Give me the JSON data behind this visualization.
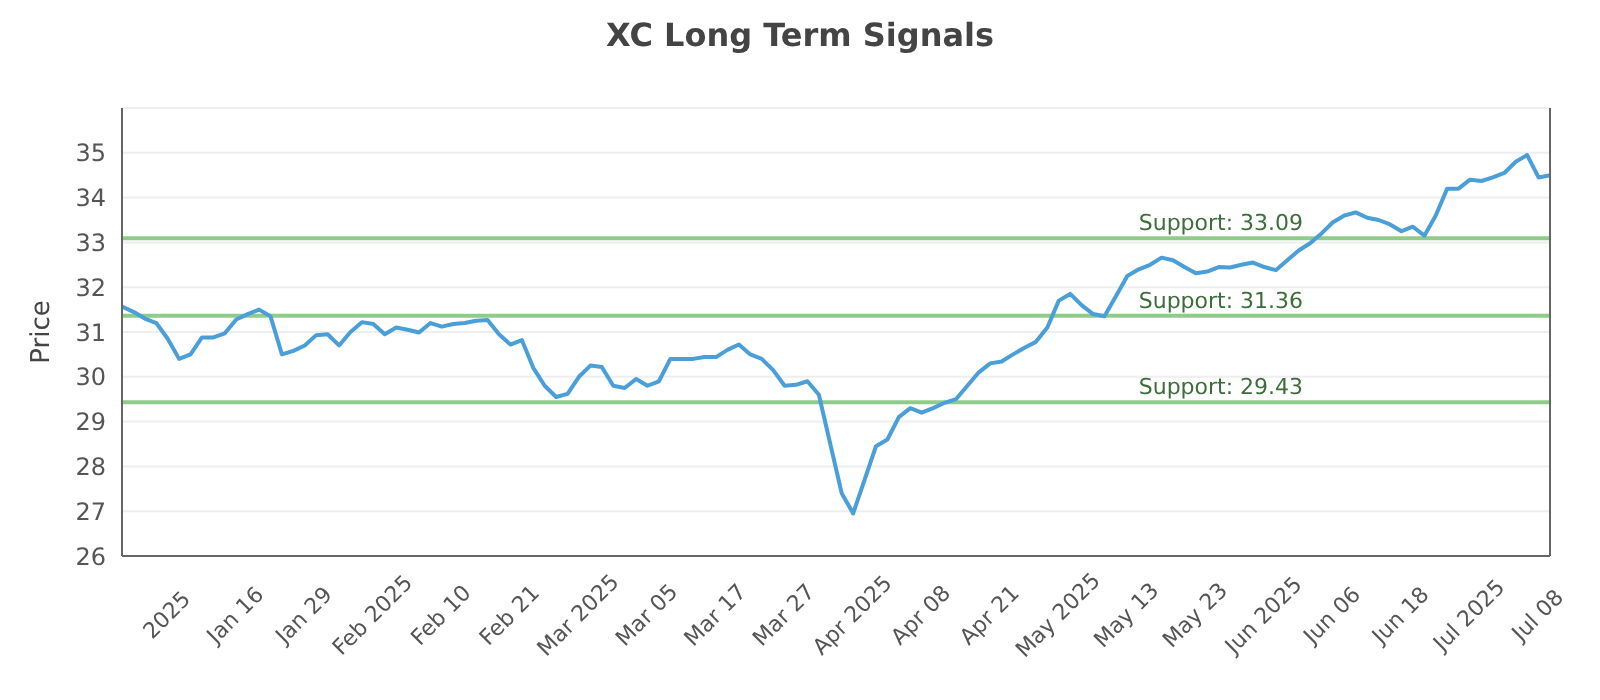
{
  "chart_data": {
    "type": "line",
    "title": "XC Long Term Signals",
    "ylabel": "Price",
    "categories": [
      null,
      null,
      null,
      null,
      "2025",
      null,
      null,
      null,
      null,
      null,
      "Jan 16",
      null,
      null,
      null,
      null,
      null,
      "Jan 29",
      null,
      null,
      null,
      null,
      null,
      "Feb 2025",
      null,
      null,
      null,
      null,
      null,
      "Feb 10",
      null,
      null,
      null,
      null,
      null,
      "Feb 21",
      null,
      null,
      null,
      null,
      null,
      "Mar 2025",
      null,
      null,
      null,
      null,
      null,
      "Mar 05",
      null,
      null,
      null,
      null,
      null,
      "Mar 17",
      null,
      null,
      null,
      null,
      null,
      "Mar 27",
      null,
      null,
      null,
      null,
      null,
      "Apr 2025",
      null,
      null,
      null,
      null,
      null,
      "Apr 08",
      null,
      null,
      null,
      null,
      null,
      "Apr 21",
      null,
      null,
      null,
      null,
      null,
      "May 2025",
      null,
      null,
      null,
      null,
      null,
      "May 13",
      null,
      null,
      null,
      null,
      null,
      "May 23",
      null,
      null,
      null,
      null,
      null,
      "Jun 2025",
      null,
      null,
      null,
      null,
      null,
      "Jun 06",
      null,
      null,
      null,
      null,
      null,
      "Jun 18",
      null,
      null,
      null,
      null,
      null,
      "Jul 2025",
      null,
      null,
      null,
      null,
      null,
      "Jul 08",
      null
    ],
    "series": [
      {
        "color": "#4a9fd8",
        "values": [
          31.57,
          31.45,
          31.3,
          31.2,
          30.85,
          30.4,
          30.5,
          30.88,
          30.88,
          30.97,
          31.28,
          31.4,
          31.5,
          31.35,
          30.5,
          30.58,
          30.7,
          30.93,
          30.95,
          30.7,
          31.0,
          31.22,
          31.18,
          30.95,
          31.1,
          31.05,
          30.99,
          31.2,
          31.12,
          31.18,
          31.2,
          31.25,
          31.27,
          30.95,
          30.72,
          30.82,
          30.2,
          29.8,
          29.55,
          29.62,
          30.0,
          30.25,
          30.22,
          29.8,
          29.75,
          29.95,
          29.8,
          29.9,
          30.4,
          30.4,
          30.4,
          30.44,
          30.44,
          30.6,
          30.72,
          30.5,
          30.4,
          30.15,
          29.8,
          29.82,
          29.9,
          29.6,
          28.5,
          27.4,
          26.95,
          27.7,
          28.45,
          28.6,
          29.1,
          29.3,
          29.2,
          29.3,
          29.42,
          29.5,
          29.8,
          30.1,
          30.3,
          30.34,
          30.5,
          30.65,
          30.78,
          31.1,
          31.7,
          31.85,
          31.6,
          31.4,
          31.35,
          31.8,
          32.25,
          32.4,
          32.5,
          32.66,
          32.6,
          32.45,
          32.31,
          32.35,
          32.45,
          32.44,
          32.5,
          32.55,
          32.45,
          32.38,
          32.6,
          32.82,
          32.98,
          33.2,
          33.45,
          33.6,
          33.67,
          33.55,
          33.5,
          33.4,
          33.25,
          33.35,
          33.15,
          33.6,
          34.2,
          34.2,
          34.4,
          34.37,
          34.45,
          34.55,
          34.8,
          34.95,
          34.45,
          34.5
        ]
      }
    ],
    "ylim": [
      26,
      36
    ],
    "yticks": [
      26,
      27,
      28,
      29,
      30,
      31,
      32,
      33,
      34,
      35
    ],
    "grid": "y",
    "marker": "none",
    "line_style": "solid",
    "ref_lines": [
      {
        "axis": "y",
        "value": 33.09,
        "label": "Support: 33.09",
        "color": "#8fcc8a"
      },
      {
        "axis": "y",
        "value": 31.36,
        "label": "Support: 31.36",
        "color": "#8fcc8a"
      },
      {
        "axis": "y",
        "value": 29.43,
        "label": "Support: 29.43",
        "color": "#8fcc8a"
      }
    ]
  }
}
